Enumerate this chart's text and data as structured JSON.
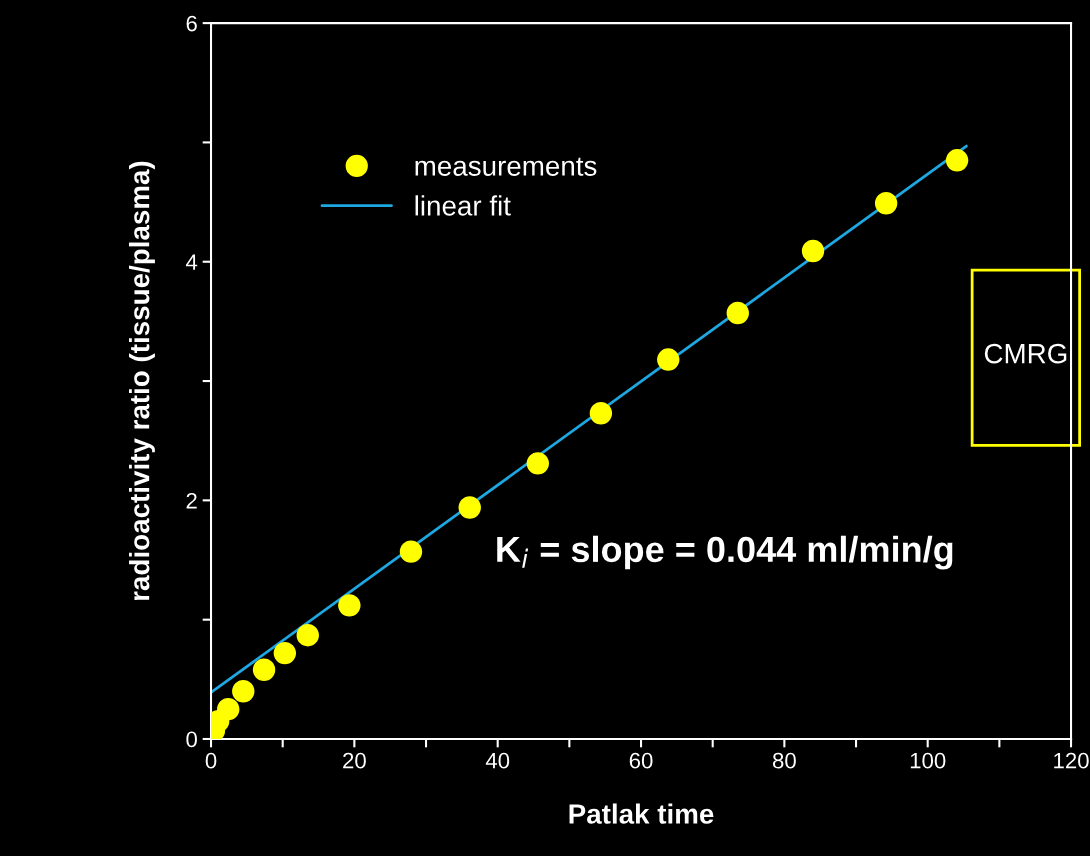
{
  "chart_data": {
    "type": "scatter",
    "xlabel": "Patlak time",
    "ylabel": "radioactivity ratio (tissue/plasma)",
    "series": [
      {
        "name": "measurements",
        "marker": "circle",
        "color": "#ffff00",
        "x": [
          0.4,
          1.0,
          2.4,
          4.5,
          7.4,
          10.3,
          13.5,
          19.3,
          27.9,
          36.1,
          45.6,
          54.4,
          63.8,
          73.5,
          84.0,
          94.2,
          104.1
        ],
        "values": [
          0.07,
          0.15,
          0.25,
          0.4,
          0.58,
          0.72,
          0.87,
          1.12,
          1.57,
          1.94,
          2.31,
          2.73,
          3.18,
          3.57,
          4.09,
          4.49,
          4.85
        ]
      },
      {
        "name": "linear fit",
        "type": "line",
        "color": "#1ea7e0",
        "x": [
          0,
          105.4
        ],
        "values": [
          0.39,
          4.97
        ]
      }
    ],
    "xlim": [
      0,
      120
    ],
    "xticks": [
      0,
      {
        "value": 10,
        "label": null
      },
      20,
      {
        "value": 30,
        "label": null
      },
      40,
      {
        "value": 50,
        "label": null
      },
      60,
      {
        "value": 70,
        "label": null
      },
      80,
      {
        "value": 90,
        "label": null
      },
      100,
      {
        "value": 110,
        "label": null
      },
      120
    ],
    "ylim": [
      0,
      6
    ],
    "yticks": [
      0,
      {
        "value": 1,
        "label": null
      },
      2,
      {
        "value": 3,
        "label": null
      },
      4,
      {
        "value": 5,
        "label": null
      },
      6
    ],
    "annotations": [
      "CMRG",
      "K$_{i}$ = slope = 0.044 ml/min/g"
    ],
    "legend": "top left",
    "grid": false
  }
}
